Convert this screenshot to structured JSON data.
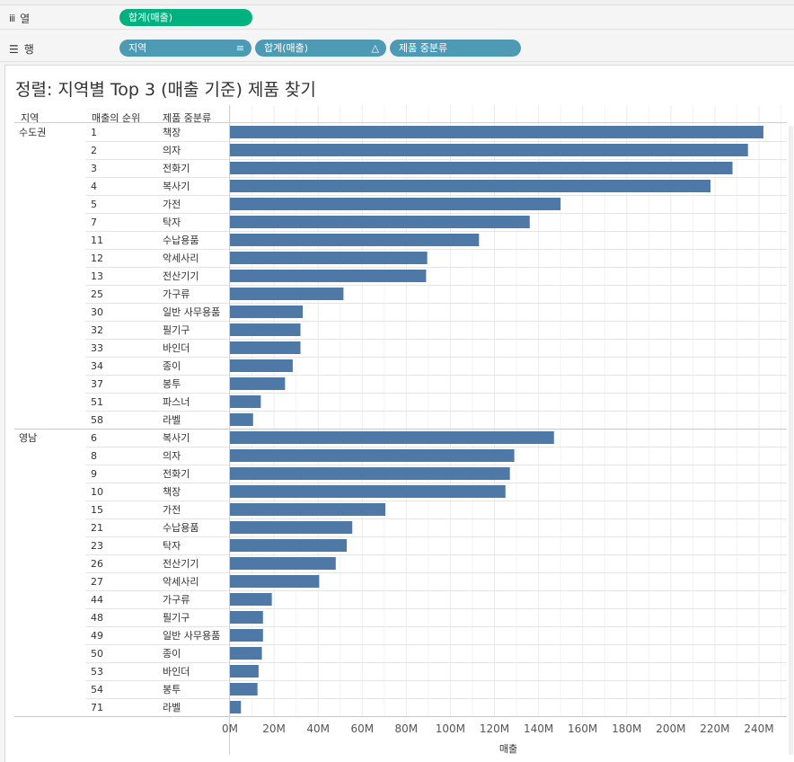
{
  "shelves": {
    "columns": {
      "label": "열",
      "icon": "columns-icon",
      "pills": [
        "합계(매출)"
      ]
    },
    "rows": {
      "label": "행",
      "icon": "rows-icon",
      "pills": [
        "지역",
        "합계(매출)",
        "제품 중분류"
      ]
    }
  },
  "sheet": {
    "title": "정렬: 지역별 Top 3 (매출 기준) 제품 찾기",
    "headers": {
      "region": "지역",
      "rank": "매출의 순위",
      "product": "제품 중분류"
    }
  },
  "colors": {
    "bar": "#4e79a7",
    "pill_green": "#00b180",
    "pill_blue": "#4e9ab5"
  },
  "chart_data": {
    "type": "bar",
    "orientation": "horizontal",
    "xlabel": "매출",
    "xlim": [
      0,
      250
    ],
    "xticks": [
      "0M",
      "20M",
      "40M",
      "60M",
      "80M",
      "100M",
      "120M",
      "140M",
      "160M",
      "180M",
      "200M",
      "220M",
      "240M"
    ],
    "x_tick_values": [
      0,
      20,
      40,
      60,
      80,
      100,
      120,
      140,
      160,
      180,
      200,
      220,
      240
    ],
    "unit": "M",
    "grid": true,
    "groups": [
      {
        "region": "수도권",
        "rows": [
          {
            "rank": "1",
            "product": "책장",
            "value": 242
          },
          {
            "rank": "2",
            "product": "의자",
            "value": 235
          },
          {
            "rank": "3",
            "product": "전화기",
            "value": 228
          },
          {
            "rank": "4",
            "product": "복사기",
            "value": 218
          },
          {
            "rank": "5",
            "product": "가전",
            "value": 150
          },
          {
            "rank": "7",
            "product": "탁자",
            "value": 136
          },
          {
            "rank": "11",
            "product": "수납용품",
            "value": 113
          },
          {
            "rank": "12",
            "product": "악세사리",
            "value": 89.5
          },
          {
            "rank": "13",
            "product": "전산기기",
            "value": 89
          },
          {
            "rank": "25",
            "product": "가구류",
            "value": 51.5
          },
          {
            "rank": "30",
            "product": "일반 사무용품",
            "value": 33
          },
          {
            "rank": "32",
            "product": "필기구",
            "value": 32
          },
          {
            "rank": "33",
            "product": "바인더",
            "value": 32
          },
          {
            "rank": "34",
            "product": "종이",
            "value": 28.5
          },
          {
            "rank": "37",
            "product": "봉투",
            "value": 25
          },
          {
            "rank": "51",
            "product": "파스너",
            "value": 14
          },
          {
            "rank": "58",
            "product": "라벨",
            "value": 10.5
          }
        ]
      },
      {
        "region": "영남",
        "rows": [
          {
            "rank": "6",
            "product": "복사기",
            "value": 147
          },
          {
            "rank": "8",
            "product": "의자",
            "value": 129
          },
          {
            "rank": "9",
            "product": "전화기",
            "value": 127
          },
          {
            "rank": "10",
            "product": "책장",
            "value": 125
          },
          {
            "rank": "15",
            "product": "가전",
            "value": 70.5
          },
          {
            "rank": "21",
            "product": "수납용품",
            "value": 55.5
          },
          {
            "rank": "23",
            "product": "탁자",
            "value": 53
          },
          {
            "rank": "26",
            "product": "전산기기",
            "value": 48
          },
          {
            "rank": "27",
            "product": "악세사리",
            "value": 40.5
          },
          {
            "rank": "44",
            "product": "가구류",
            "value": 19
          },
          {
            "rank": "48",
            "product": "필기구",
            "value": 15
          },
          {
            "rank": "49",
            "product": "일반 사무용품",
            "value": 15
          },
          {
            "rank": "50",
            "product": "종이",
            "value": 14.5
          },
          {
            "rank": "53",
            "product": "바인더",
            "value": 13
          },
          {
            "rank": "54",
            "product": "봉투",
            "value": 12.5
          },
          {
            "rank": "71",
            "product": "라벨",
            "value": 5
          }
        ]
      }
    ]
  }
}
